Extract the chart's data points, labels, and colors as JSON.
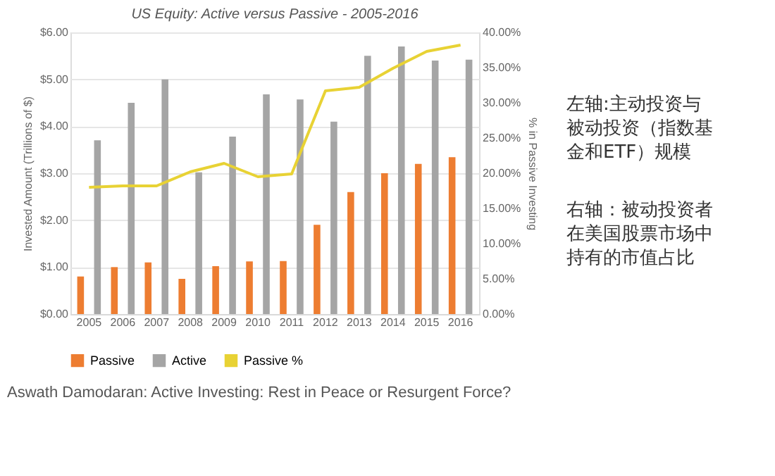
{
  "chart_data": {
    "type": "bar",
    "title": "US Equity: Active versus Passive - 2005-2016",
    "categories": [
      "2005",
      "2006",
      "2007",
      "2008",
      "2009",
      "2010",
      "2011",
      "2012",
      "2013",
      "2014",
      "2015",
      "2016"
    ],
    "series": [
      {
        "name": "Passive",
        "color": "#ed7d31",
        "values": [
          0.8,
          1.0,
          1.1,
          0.75,
          1.02,
          1.12,
          1.13,
          1.9,
          2.6,
          3.0,
          3.2,
          3.34
        ]
      },
      {
        "name": "Active",
        "color": "#a5a5a5",
        "values": [
          3.7,
          4.5,
          5.0,
          3.02,
          3.78,
          4.68,
          4.57,
          4.1,
          5.5,
          5.7,
          5.4,
          5.42
        ]
      },
      {
        "name": "Passive %",
        "color": "#e8d234",
        "type": "line",
        "axis": "y2",
        "values": [
          18.0,
          18.2,
          18.2,
          20.2,
          21.4,
          19.5,
          19.9,
          31.7,
          32.2,
          34.9,
          37.3,
          38.2
        ]
      }
    ],
    "ylabel": "Invested Amount (Trillions of $)",
    "y2label": "% in Passive Investing",
    "ylim": [
      0,
      6
    ],
    "yticks": [
      {
        "value": 0,
        "label": "$0.00"
      },
      {
        "value": 1,
        "label": "$1.00"
      },
      {
        "value": 2,
        "label": "$2.00"
      },
      {
        "value": 3,
        "label": "$3.00"
      },
      {
        "value": 4,
        "label": "$4.00"
      },
      {
        "value": 5,
        "label": "$5.00"
      },
      {
        "value": 6,
        "label": "$6.00"
      }
    ],
    "y2lim": [
      0,
      40
    ],
    "y2ticks": [
      {
        "value": 0,
        "label": "0.00%"
      },
      {
        "value": 5,
        "label": "5.00%"
      },
      {
        "value": 10,
        "label": "10.00%"
      },
      {
        "value": 15,
        "label": "15.00%"
      },
      {
        "value": 20,
        "label": "20.00%"
      },
      {
        "value": 25,
        "label": "25.00%"
      },
      {
        "value": 30,
        "label": "30.00%"
      },
      {
        "value": 35,
        "label": "35.00%"
      },
      {
        "value": 40,
        "label": "40.00%"
      }
    ],
    "grid": "y",
    "legend": "bottom",
    "marker": "none",
    "annotations": [
      "左轴:主动投资与被动投资（指数基金和ETF）规模",
      "右轴：被动投资者在美国股票市场中持有的市值占比",
      "Aswath Damodaran: Active Investing: Rest in Peace or Resurgent Force?"
    ]
  }
}
